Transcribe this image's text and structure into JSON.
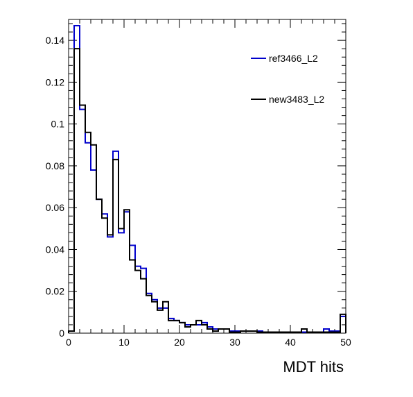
{
  "chart_data": {
    "type": "histogram",
    "xlabel": "MDT hits",
    "ylabel": "",
    "xlim": [
      0,
      50
    ],
    "ylim": [
      0,
      0.15
    ],
    "bin_width": 1,
    "x_ticks": [
      "0",
      "10",
      "20",
      "30",
      "40",
      "50"
    ],
    "y_ticks": [
      "0",
      "0.02",
      "0.04",
      "0.06",
      "0.08",
      "0.1",
      "0.12",
      "0.14"
    ],
    "grid": false,
    "legend_position": "top-right",
    "series": [
      {
        "name": "ref3466_L2",
        "color": "#0000cc",
        "values": [
          0.001,
          0.147,
          0.107,
          0.091,
          0.078,
          0.064,
          0.057,
          0.046,
          0.087,
          0.048,
          0.058,
          0.042,
          0.032,
          0.031,
          0.019,
          0.016,
          0.012,
          0.012,
          0.007,
          0.006,
          0.005,
          0.004,
          0.004,
          0.004,
          0.005,
          0.003,
          0.002,
          0.002,
          0.002,
          0.001,
          0.001,
          0.001,
          0.001,
          0.001,
          0.001,
          0.0005,
          0.0005,
          0.0005,
          0.0005,
          0.0005,
          0.0005,
          0.0005,
          0.0005,
          0.0005,
          0.0005,
          0.0005,
          0.002,
          0.001,
          0.001,
          0.008
        ]
      },
      {
        "name": "new3483_L2",
        "color": "#000000",
        "values": [
          0.001,
          0.136,
          0.109,
          0.096,
          0.09,
          0.064,
          0.055,
          0.047,
          0.083,
          0.05,
          0.059,
          0.035,
          0.03,
          0.026,
          0.018,
          0.015,
          0.011,
          0.015,
          0.006,
          0.006,
          0.005,
          0.003,
          0.004,
          0.006,
          0.004,
          0.002,
          0.001,
          0.002,
          0.002,
          0.0005,
          0.0005,
          0.001,
          0.001,
          0.001,
          0.0005,
          0.0005,
          0.0005,
          0.0005,
          0.0005,
          0.0005,
          0.0005,
          0.0005,
          0.002,
          0.0005,
          0.0005,
          0.0005,
          0.0005,
          0.0005,
          0.0005,
          0.009
        ]
      }
    ]
  }
}
